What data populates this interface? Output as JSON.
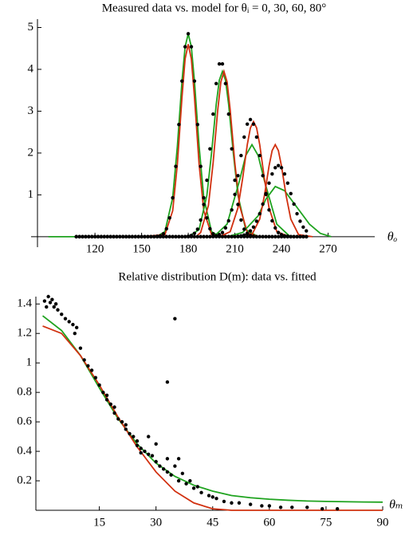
{
  "chart_data": [
    {
      "type": "scatter",
      "title": "Measured data vs. model for θᵢ = 0, 30, 60, 80°",
      "x_label": "θₒ",
      "xlim": [
        83,
        300
      ],
      "ylim": [
        -0.25,
        5.2
      ],
      "xticks": [
        120,
        150,
        180,
        210,
        240,
        270
      ],
      "yticks": [
        1,
        2,
        3,
        4,
        5
      ],
      "x": [
        108,
        110,
        112,
        114,
        116,
        118,
        120,
        122,
        124,
        126,
        128,
        130,
        132,
        134,
        136,
        138,
        140,
        142,
        144,
        146,
        148,
        150,
        152,
        154,
        156,
        158,
        160,
        162,
        164,
        166,
        168,
        170,
        172,
        174,
        176,
        178,
        180,
        182,
        184,
        186,
        188,
        190,
        192,
        194,
        196,
        198,
        200,
        202,
        204,
        206,
        208,
        210,
        212,
        214,
        216,
        218,
        220,
        222,
        224,
        226,
        228,
        230,
        232,
        234,
        236,
        238,
        240,
        242,
        244,
        246,
        248,
        250,
        252,
        254,
        256
      ],
      "series": [
        {
          "color": "#1fa31f",
          "mode": "lines",
          "x": [
            90,
            155,
            160,
            165,
            170,
            173,
            176,
            178,
            180,
            182,
            184,
            187,
            190,
            195,
            200,
            205
          ],
          "values": [
            0,
            0,
            0.01,
            0.12,
            0.93,
            2.16,
            3.72,
            4.54,
            4.85,
            4.54,
            3.72,
            2.16,
            0.93,
            0.12,
            0.01,
            0
          ]
        },
        {
          "color": "#d1300f",
          "mode": "lines",
          "x": [
            150,
            165,
            170,
            173,
            176,
            178,
            180,
            182,
            184,
            187,
            190,
            195,
            210
          ],
          "values": [
            0,
            0.05,
            0.62,
            1.73,
            3.34,
            4.25,
            4.6,
            4.25,
            3.34,
            1.73,
            0.62,
            0.05,
            0
          ]
        },
        {
          "color": "#1fa31f",
          "mode": "lines",
          "x": [
            180,
            187,
            192,
            195,
            198,
            200,
            202,
            204,
            206,
            209,
            212,
            217,
            225
          ],
          "values": [
            0,
            0.17,
            0.99,
            2.0,
            3.16,
            3.74,
            3.95,
            3.74,
            3.16,
            2.0,
            0.99,
            0.17,
            0
          ]
        },
        {
          "color": "#d1300f",
          "mode": "lines",
          "x": [
            185,
            188,
            193,
            196,
            199,
            201,
            203,
            205,
            207,
            210,
            213,
            218,
            225
          ],
          "values": [
            0,
            0.1,
            0.75,
            1.76,
            3.03,
            3.7,
            3.95,
            3.7,
            3.03,
            1.76,
            0.75,
            0.1,
            0
          ]
        },
        {
          "color": "#1fa31f",
          "mode": "lines",
          "x": [
            193,
            197,
            205,
            213,
            217,
            221,
            225,
            229,
            237,
            245,
            250
          ],
          "values": [
            0,
            0.02,
            0.3,
            1.34,
            1.94,
            2.2,
            1.94,
            1.34,
            0.3,
            0.02,
            0
          ]
        },
        {
          "color": "#d1300f",
          "mode": "lines",
          "x": [
            200,
            207,
            212,
            215,
            218,
            220,
            222,
            224,
            226,
            229,
            232,
            237,
            245
          ],
          "values": [
            0,
            0.12,
            0.69,
            1.39,
            2.2,
            2.6,
            2.75,
            2.6,
            2.2,
            1.39,
            0.69,
            0.12,
            0
          ]
        },
        {
          "color": "#1fa31f",
          "mode": "lines",
          "x": [
            205,
            215,
            225,
            230,
            236,
            242,
            250,
            258,
            265,
            272
          ],
          "values": [
            0,
            0.1,
            0.5,
            0.9,
            1.2,
            1.1,
            0.7,
            0.3,
            0.08,
            0
          ]
        },
        {
          "color": "#d1300f",
          "mode": "lines",
          "x": [
            215,
            221,
            226,
            229,
            232,
            234,
            236,
            238,
            240,
            243,
            246,
            251,
            260
          ],
          "values": [
            0,
            0.05,
            0.42,
            0.98,
            1.69,
            2.06,
            2.2,
            2.06,
            1.69,
            0.98,
            0.42,
            0.05,
            0
          ]
        },
        {
          "color": "#000000",
          "mode": "markers",
          "values": [
            0,
            0,
            0,
            0,
            0,
            0,
            0,
            0,
            0,
            0,
            0,
            0,
            0,
            0,
            0,
            0,
            0,
            0,
            0,
            0,
            0,
            0,
            0,
            0,
            0,
            0,
            0.01,
            0.02,
            0.07,
            0.19,
            0.45,
            0.93,
            1.68,
            2.68,
            3.72,
            4.54,
            4.85,
            4.54,
            3.72,
            2.68,
            1.68,
            0.93,
            0.45,
            0.19,
            0.07,
            0.02,
            0.01,
            0,
            0,
            0,
            0,
            0,
            0,
            0,
            0,
            0,
            0,
            0,
            0,
            0,
            0,
            0,
            0,
            0,
            0,
            0,
            0,
            0,
            0,
            0,
            0,
            0,
            0,
            0,
            0
          ]
        },
        {
          "color": "#000000",
          "mode": "markers",
          "values": [
            0,
            0,
            0,
            0,
            0,
            0,
            0,
            0,
            0,
            0,
            0,
            0,
            0,
            0,
            0,
            0,
            0,
            0,
            0,
            0,
            0,
            0,
            0,
            0,
            0,
            0,
            0,
            0,
            0,
            0,
            0,
            0,
            0,
            0,
            0,
            0,
            0.01,
            0.03,
            0.08,
            0.18,
            0.4,
            0.77,
            1.35,
            2.1,
            2.93,
            3.66,
            4.13,
            4.13,
            3.66,
            2.93,
            2.1,
            1.35,
            0.77,
            0.4,
            0.18,
            0.08,
            0.03,
            0.01,
            0,
            0,
            0,
            0,
            0,
            0,
            0,
            0,
            0,
            0,
            0,
            0,
            0,
            0,
            0,
            0,
            0
          ]
        },
        {
          "color": "#000000",
          "mode": "markers",
          "values": [
            0,
            0,
            0,
            0,
            0,
            0,
            0,
            0,
            0,
            0,
            0,
            0,
            0,
            0,
            0,
            0,
            0,
            0,
            0,
            0,
            0,
            0,
            0,
            0,
            0,
            0,
            0,
            0,
            0,
            0,
            0,
            0,
            0,
            0,
            0,
            0,
            0,
            0,
            0,
            0,
            0,
            0,
            0,
            0,
            0.01,
            0.02,
            0.05,
            0.1,
            0.21,
            0.38,
            0.64,
            1.01,
            1.46,
            1.94,
            2.38,
            2.69,
            2.8,
            2.69,
            2.38,
            1.94,
            1.46,
            1.01,
            0.64,
            0.38,
            0.21,
            0.1,
            0.05,
            0.02,
            0.01,
            0,
            0,
            0,
            0,
            0,
            0
          ]
        },
        {
          "color": "#000000",
          "mode": "markers",
          "values": [
            0,
            0,
            0,
            0,
            0,
            0,
            0,
            0,
            0,
            0,
            0,
            0,
            0,
            0,
            0,
            0,
            0,
            0,
            0,
            0,
            0,
            0,
            0,
            0,
            0,
            0,
            0,
            0,
            0,
            0,
            0,
            0,
            0,
            0,
            0,
            0,
            0,
            0,
            0,
            0,
            0,
            0,
            0,
            0,
            0,
            0,
            0,
            0,
            0,
            0,
            0,
            0,
            0.01,
            0.02,
            0.04,
            0.07,
            0.14,
            0.23,
            0.37,
            0.55,
            0.78,
            1.03,
            1.28,
            1.5,
            1.65,
            1.7,
            1.65,
            1.5,
            1.28,
            1.03,
            0.78,
            0.55,
            0.37,
            0.23,
            0.14
          ]
        }
      ]
    },
    {
      "type": "scatter",
      "title": "Relative distribution D(m): data vs. fitted",
      "x_label": "θₘ",
      "xlim": [
        -1.8,
        90
      ],
      "ylim": [
        0,
        1.45
      ],
      "xticks": [
        15,
        30,
        45,
        60,
        75,
        90
      ],
      "yticks": [
        0.2,
        0.4,
        0.6,
        0.8,
        1,
        1.2,
        1.4
      ],
      "series": [
        {
          "color": "#1fa31f",
          "mode": "lines",
          "x": [
            0,
            5,
            10,
            15,
            20,
            25,
            30,
            35,
            40,
            45,
            50,
            55,
            60,
            65,
            70,
            75,
            80,
            85,
            90
          ],
          "values": [
            1.32,
            1.22,
            1.05,
            0.83,
            0.62,
            0.45,
            0.32,
            0.23,
            0.17,
            0.13,
            0.1,
            0.085,
            0.075,
            0.068,
            0.063,
            0.06,
            0.058,
            0.056,
            0.055
          ]
        },
        {
          "color": "#d1300f",
          "mode": "lines",
          "x": [
            0,
            5,
            10,
            15,
            20,
            25,
            30,
            35,
            40,
            45,
            50,
            55,
            60,
            65,
            70,
            75,
            80,
            85,
            90
          ],
          "values": [
            1.25,
            1.2,
            1.05,
            0.85,
            0.63,
            0.43,
            0.26,
            0.13,
            0.05,
            0.01,
            0,
            0,
            0,
            0,
            0,
            0,
            0,
            0,
            0
          ]
        },
        {
          "color": "#000000",
          "mode": "markers",
          "x": [
            0.5,
            1,
            1.5,
            2,
            2.5,
            3,
            3.5,
            4,
            5,
            6,
            7,
            8,
            8.5,
            9,
            10,
            11,
            12,
            13,
            14,
            15,
            16,
            17,
            18,
            19,
            20,
            21,
            22,
            23,
            24,
            25,
            26,
            27,
            28,
            29,
            30,
            31,
            32,
            33,
            34,
            33,
            35,
            28,
            30,
            33,
            35,
            36,
            38,
            40,
            42,
            44,
            46,
            48,
            50,
            52,
            55,
            58,
            60,
            63,
            66,
            70,
            74,
            78,
            17,
            19,
            22,
            25,
            26,
            37,
            39,
            41,
            45,
            36
          ],
          "values": [
            1.42,
            1.38,
            1.45,
            1.41,
            1.43,
            1.38,
            1.4,
            1.36,
            1.33,
            1.3,
            1.28,
            1.26,
            1.2,
            1.24,
            1.1,
            1.02,
            0.98,
            0.95,
            0.9,
            0.85,
            0.8,
            0.78,
            0.72,
            0.7,
            0.62,
            0.6,
            0.55,
            0.52,
            0.5,
            0.44,
            0.42,
            0.4,
            0.38,
            0.37,
            0.33,
            0.3,
            0.28,
            0.26,
            0.24,
            0.87,
            1.3,
            0.5,
            0.45,
            0.35,
            0.3,
            0.2,
            0.18,
            0.15,
            0.12,
            0.1,
            0.08,
            0.06,
            0.05,
            0.05,
            0.04,
            0.03,
            0.03,
            0.02,
            0.02,
            0.02,
            0.01,
            0.01,
            0.75,
            0.66,
            0.58,
            0.47,
            0.39,
            0.25,
            0.2,
            0.16,
            0.09,
            0.35
          ]
        }
      ]
    }
  ]
}
